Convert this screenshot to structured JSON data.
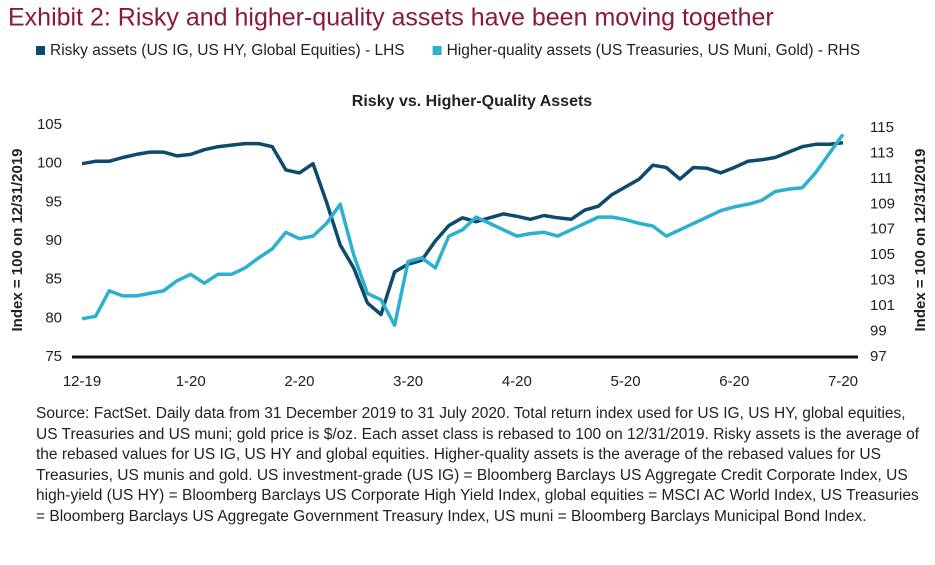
{
  "chart_data": {
    "type": "line",
    "title": "Exhibit 2: Risky and higher-quality assets have been moving together",
    "subtitle": "Risky vs. Higher-Quality Assets",
    "y_label": "Index = 100 on 12/31/2019",
    "y2_label": "Index = 100 on 12/31/2019",
    "source": "Source: FactSet. Daily data from 31 December 2019 to 31 July 2020. Total return index used for US IG, US HY, global equities, US Treasuries and US muni; gold price is $/oz. Each asset class is rebased to 100 on 12/31/2019. Risky assets is the average of the rebased values for US IG, US HY and global equities. Higher-quality assets is the average of the rebased values for US Treasuries, US munis and gold. US investment-grade (US IG) = Bloomberg Barclays US Aggregate Credit Corporate Index, US high-yield (US HY) = Bloomberg Barclays US Corporate High Yield Index, global equities = MSCI AC World Index, US Treasuries = Bloomberg Barclays US Aggregate Government Treasury Index, US muni = Bloomberg Barclays Municipal Bond Index.",
    "categories": [
      "12-19",
      null,
      null,
      null,
      null,
      null,
      null,
      null,
      "1-20",
      null,
      null,
      null,
      null,
      null,
      null,
      null,
      "2-20",
      null,
      null,
      null,
      null,
      null,
      null,
      null,
      "3-20",
      null,
      null,
      null,
      null,
      null,
      null,
      null,
      "4-20",
      null,
      null,
      null,
      null,
      null,
      null,
      null,
      "5-20",
      null,
      null,
      null,
      null,
      null,
      null,
      null,
      "6-20",
      null,
      null,
      null,
      null,
      null,
      null,
      null,
      "7-20"
    ],
    "series": [
      {
        "name": "Risky assets (US IG, US HY, Global Equities) - LHS",
        "color": "#0d4a6b",
        "axis": "y",
        "values": [
          100,
          100.3,
          100.3,
          100.8,
          101.2,
          101.5,
          101.5,
          101,
          101.2,
          101.8,
          102.2,
          102.4,
          102.6,
          102.6,
          102.2,
          99.2,
          98.8,
          100,
          95,
          89.5,
          86.5,
          82,
          80.5,
          86,
          87,
          87.5,
          90,
          92,
          93,
          92.5,
          93,
          93.5,
          93.2,
          92.8,
          93.3,
          93,
          92.8,
          94,
          94.5,
          96,
          97,
          98,
          99.8,
          99.5,
          98,
          99.5,
          99.4,
          98.8,
          99.5,
          100.3,
          100.5,
          100.8,
          101.5,
          102.2,
          102.5,
          102.5,
          102.7
        ]
      },
      {
        "name": "Higher-quality assets (US Treasuries, US Muni, Gold) - RHS",
        "color": "#2bb0cf",
        "axis": "y2",
        "values": [
          100,
          100.2,
          102.2,
          101.8,
          101.8,
          102,
          102.2,
          103,
          103.5,
          102.8,
          103.5,
          103.5,
          104,
          104.8,
          105.5,
          106.8,
          106.3,
          106.5,
          107.5,
          109,
          105,
          102,
          101.5,
          99.5,
          104.5,
          104.8,
          104,
          106.5,
          107,
          108,
          107.5,
          107,
          106.5,
          106.7,
          106.8,
          106.5,
          107,
          107.5,
          108,
          108,
          107.8,
          107.5,
          107.3,
          106.5,
          107,
          107.5,
          108,
          108.5,
          108.8,
          109,
          109.3,
          110,
          110.2,
          110.3,
          111.5,
          113,
          114.5
        ]
      }
    ],
    "ylim": [
      75,
      105
    ],
    "yticks": [
      75,
      80,
      85,
      90,
      95,
      100,
      105
    ],
    "y2lim": [
      97,
      115
    ],
    "y2ticks": [
      97,
      99,
      101,
      103,
      105,
      107,
      109,
      111,
      113,
      115
    ],
    "grid": false,
    "title_color": "#8b1a3a"
  }
}
